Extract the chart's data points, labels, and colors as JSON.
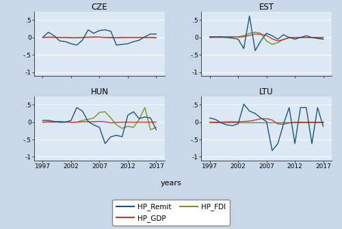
{
  "years": [
    1997,
    1998,
    1999,
    2000,
    2001,
    2002,
    2003,
    2004,
    2005,
    2006,
    2007,
    2008,
    2009,
    2010,
    2011,
    2012,
    2013,
    2014,
    2015,
    2016,
    2017
  ],
  "CZE": {
    "HP_Remit": [
      0.0,
      0.15,
      0.05,
      -0.1,
      -0.12,
      -0.18,
      -0.22,
      -0.08,
      0.22,
      0.12,
      0.2,
      0.22,
      0.18,
      -0.22,
      -0.2,
      -0.18,
      -0.12,
      -0.08,
      0.02,
      0.1,
      0.1
    ],
    "HP_GDP": [
      0.0,
      0.01,
      0.01,
      0.0,
      0.0,
      -0.01,
      -0.01,
      0.0,
      0.01,
      0.01,
      0.01,
      0.0,
      -0.01,
      -0.01,
      0.0,
      0.0,
      0.0,
      0.0,
      0.0,
      0.0,
      -0.01
    ],
    "HP_FDI": [
      0.0,
      0.0,
      0.0,
      0.0,
      0.0,
      -0.01,
      -0.01,
      0.0,
      0.0,
      0.01,
      0.01,
      0.0,
      0.0,
      -0.01,
      0.0,
      0.0,
      0.0,
      0.0,
      0.0,
      0.0,
      -0.01
    ]
  },
  "EST": {
    "HP_Remit": [
      0.02,
      0.02,
      0.02,
      0.0,
      -0.02,
      -0.05,
      -0.32,
      0.62,
      -0.38,
      -0.1,
      0.12,
      0.05,
      -0.05,
      0.08,
      0.0,
      -0.05,
      0.0,
      0.05,
      0.0,
      -0.03,
      -0.05
    ],
    "HP_GDP": [
      0.0,
      0.01,
      0.01,
      0.02,
      0.02,
      0.01,
      0.02,
      0.06,
      0.1,
      0.09,
      0.06,
      -0.04,
      -0.1,
      -0.06,
      -0.01,
      0.0,
      0.0,
      0.0,
      0.0,
      0.0,
      -0.01
    ],
    "HP_FDI": [
      0.0,
      0.0,
      0.0,
      0.0,
      0.01,
      0.02,
      0.05,
      0.12,
      0.15,
      0.12,
      -0.1,
      -0.2,
      -0.15,
      -0.05,
      0.0,
      0.0,
      0.0,
      0.0,
      0.0,
      0.0,
      0.0
    ]
  },
  "HUN": {
    "HP_Remit": [
      0.05,
      0.05,
      0.02,
      0.0,
      0.0,
      0.05,
      0.42,
      0.32,
      0.02,
      -0.08,
      -0.15,
      -0.62,
      -0.42,
      -0.38,
      -0.42,
      0.2,
      0.3,
      0.1,
      0.15,
      0.12,
      -0.22
    ],
    "HP_GDP": [
      0.0,
      0.01,
      0.01,
      0.02,
      0.01,
      0.0,
      0.0,
      0.01,
      0.01,
      0.01,
      0.02,
      0.01,
      -0.02,
      -0.01,
      0.0,
      0.0,
      0.0,
      0.0,
      0.0,
      0.0,
      0.0
    ],
    "HP_FDI": [
      0.0,
      0.0,
      0.0,
      0.0,
      0.0,
      0.0,
      0.0,
      0.05,
      0.08,
      0.12,
      0.28,
      0.3,
      0.12,
      -0.08,
      -0.18,
      -0.12,
      -0.15,
      0.08,
      0.42,
      -0.22,
      -0.15
    ]
  },
  "LTU": {
    "HP_Remit": [
      0.12,
      0.08,
      -0.02,
      -0.08,
      -0.1,
      -0.05,
      0.52,
      0.32,
      0.25,
      0.12,
      0.02,
      -0.82,
      -0.62,
      -0.05,
      0.42,
      -0.62,
      0.42,
      0.42,
      -0.62,
      0.42,
      -0.12
    ],
    "HP_GDP": [
      0.0,
      0.0,
      0.0,
      0.01,
      0.01,
      0.01,
      0.02,
      0.03,
      0.06,
      0.1,
      0.1,
      0.06,
      -0.05,
      -0.06,
      -0.02,
      0.0,
      0.0,
      0.0,
      0.0,
      0.0,
      0.0
    ],
    "HP_FDI": [
      0.0,
      0.0,
      0.0,
      0.0,
      0.0,
      0.0,
      0.0,
      0.0,
      0.0,
      0.0,
      0.0,
      0.0,
      0.0,
      0.0,
      0.0,
      0.0,
      0.0,
      0.0,
      0.0,
      0.0,
      0.0
    ]
  },
  "color_remit": "#1a5276",
  "color_gdp": "#c0392b",
  "color_fdi": "#7d8c1a",
  "bg_color": "#dce9f5",
  "fig_bg": "#c8d8e8",
  "ylim": [
    -1.1,
    0.75
  ],
  "yticks": [
    -1.0,
    -0.5,
    0.0,
    0.5
  ],
  "ytick_labels": [
    "-1",
    "-.5",
    "0",
    ".5"
  ],
  "xticks": [
    1997,
    2002,
    2007,
    2012,
    2017
  ],
  "xlabel": "years",
  "countries": [
    "CZE",
    "EST",
    "HUN",
    "LTU"
  ],
  "legend_order": [
    "HP_Remit",
    "HP_GDP",
    "HP_FDI"
  ]
}
